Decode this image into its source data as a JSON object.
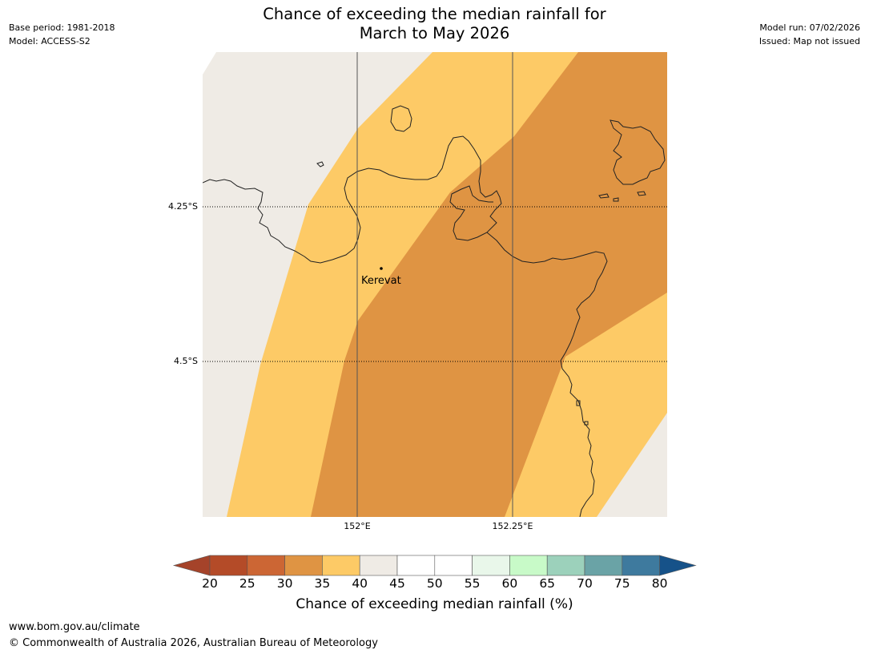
{
  "header": {
    "title_line1": "Chance of exceeding the median rainfall for",
    "title_line2": "March to May 2026",
    "base_period": "Base period: 1981-2018",
    "model": "Model: ACCESS-S2",
    "model_run": "Model run: 07/02/2026",
    "issued": "Issued: Map not issued"
  },
  "map": {
    "lat_labels": [
      "4.25°S",
      "4.5°S"
    ],
    "lon_labels": [
      "152°E",
      "152.25°E"
    ],
    "place": {
      "name": "Kerevat"
    },
    "colors": {
      "band_40_45": "#efebe5",
      "band_35_40": "#fdca66",
      "band_30_35": "#df9443",
      "coast": "#222222",
      "background": "#ffffff"
    }
  },
  "colorbar": {
    "ticks": [
      "20",
      "25",
      "30",
      "35",
      "40",
      "45",
      "50",
      "55",
      "60",
      "65",
      "70",
      "75",
      "80"
    ],
    "colors": [
      "#a5432a",
      "#b44b28",
      "#cc6634",
      "#df9443",
      "#fdca66",
      "#efebe5",
      "#ffffff",
      "#ffffff",
      "#e9f7ea",
      "#c8fac8",
      "#9cd1bb",
      "#6aa3a6",
      "#3e7a9e",
      "#165289"
    ],
    "label": "Chance of exceeding median rainfall (%)"
  },
  "footer": {
    "url": "www.bom.gov.au/climate",
    "copyright": "© Commonwealth of Australia 2026, Australian Bureau of Meteorology"
  }
}
